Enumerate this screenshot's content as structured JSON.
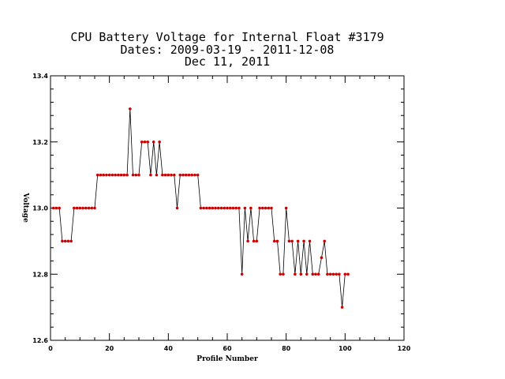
{
  "chart_data": {
    "type": "line",
    "title_lines": [
      "CPU Battery Voltage for Internal Float #3179",
      "Dates:  2009-03-19 -  2011-12-08",
      "Dec 11, 2011"
    ],
    "xlabel": "Profile Number",
    "ylabel": "Voltage",
    "xlim": [
      0,
      120
    ],
    "ylim": [
      12.6,
      13.4
    ],
    "x_ticks": [
      0,
      20,
      40,
      60,
      80,
      100,
      120
    ],
    "y_ticks": [
      12.6,
      12.8,
      13.0,
      13.2,
      13.4
    ],
    "y_tick_labels": [
      "12.6",
      "12.8",
      "13.0",
      "13.2",
      "13.4"
    ],
    "grid": false,
    "line_color": "#000000",
    "marker_color": "#cc0000",
    "series": [
      {
        "x": [
          1,
          2,
          3,
          4,
          5,
          6,
          7,
          8,
          9,
          10,
          11,
          12,
          13,
          14,
          15,
          16,
          17,
          18,
          19,
          20,
          21,
          22,
          23,
          24,
          25,
          26,
          27,
          28,
          29,
          30,
          31,
          32,
          33,
          34,
          35,
          36,
          37,
          38,
          39,
          40,
          41,
          42,
          43,
          44,
          45,
          46,
          47,
          48,
          49,
          50,
          51,
          52,
          53,
          54,
          55,
          56,
          57,
          58,
          59,
          60,
          61,
          62,
          63,
          64,
          65,
          66,
          67,
          68,
          69,
          70,
          71,
          72,
          73,
          74,
          75,
          76,
          77,
          78,
          79,
          80,
          81,
          82,
          83,
          84,
          85,
          86,
          87,
          88,
          89,
          90,
          91,
          92,
          93,
          94,
          95,
          96,
          97,
          98,
          99,
          100,
          101
        ],
        "y": [
          13.0,
          13.0,
          13.0,
          12.9,
          12.9,
          12.9,
          12.9,
          13.0,
          13.0,
          13.0,
          13.0,
          13.0,
          13.0,
          13.0,
          13.0,
          13.1,
          13.1,
          13.1,
          13.1,
          13.1,
          13.1,
          13.1,
          13.1,
          13.1,
          13.1,
          13.1,
          13.3,
          13.1,
          13.1,
          13.1,
          13.2,
          13.2,
          13.2,
          13.1,
          13.2,
          13.1,
          13.2,
          13.1,
          13.1,
          13.1,
          13.1,
          13.1,
          13.0,
          13.1,
          13.1,
          13.1,
          13.1,
          13.1,
          13.1,
          13.1,
          13.0,
          13.0,
          13.0,
          13.0,
          13.0,
          13.0,
          13.0,
          13.0,
          13.0,
          13.0,
          13.0,
          13.0,
          13.0,
          13.0,
          12.8,
          13.0,
          12.9,
          13.0,
          12.9,
          12.9,
          13.0,
          13.0,
          13.0,
          13.0,
          13.0,
          12.9,
          12.9,
          12.8,
          12.8,
          13.0,
          12.9,
          12.9,
          12.8,
          12.9,
          12.8,
          12.9,
          12.8,
          12.9,
          12.8,
          12.8,
          12.8,
          12.85,
          12.9,
          12.8,
          12.8,
          12.8,
          12.8,
          12.8,
          12.7,
          12.8,
          12.8
        ]
      }
    ]
  }
}
